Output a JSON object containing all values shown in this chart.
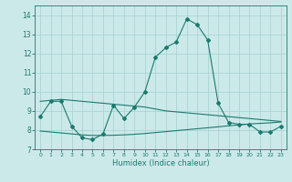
{
  "xlabel": "Humidex (Indice chaleur)",
  "ylabel": "",
  "background_color": "#cce9e9",
  "grid_color": "#aad4d4",
  "line_color": "#1a7a6e",
  "xlim": [
    -0.5,
    23.5
  ],
  "ylim": [
    7,
    14.5
  ],
  "yticks": [
    7,
    8,
    9,
    10,
    11,
    12,
    13,
    14
  ],
  "xtick_labels": [
    "0",
    "1",
    "2",
    "3",
    "4",
    "5",
    "6",
    "7",
    "8",
    "9",
    "10",
    "11",
    "12",
    "13",
    "14",
    "15",
    "16",
    "17",
    "18",
    "19",
    "20",
    "21",
    "22",
    "23"
  ],
  "line1_x": [
    0,
    1,
    2,
    3,
    4,
    5,
    6,
    7,
    8,
    9,
    10,
    11,
    12,
    13,
    14,
    15,
    16,
    17,
    18,
    19,
    20,
    21,
    22,
    23
  ],
  "line1_y": [
    8.7,
    9.5,
    9.5,
    8.2,
    7.6,
    7.5,
    7.8,
    9.3,
    8.6,
    9.2,
    10.0,
    11.8,
    12.3,
    12.6,
    13.8,
    13.5,
    12.7,
    9.4,
    8.4,
    8.3,
    8.3,
    7.9,
    7.9,
    8.2
  ],
  "line2_x": [
    0,
    1,
    2,
    3,
    4,
    5,
    6,
    7,
    8,
    9,
    10,
    11,
    12,
    13,
    14,
    15,
    16,
    17,
    18,
    19,
    20,
    21,
    22,
    23
  ],
  "line2_y": [
    9.5,
    9.55,
    9.6,
    9.55,
    9.5,
    9.45,
    9.4,
    9.35,
    9.3,
    9.25,
    9.2,
    9.1,
    9.0,
    8.95,
    8.9,
    8.85,
    8.8,
    8.75,
    8.7,
    8.65,
    8.6,
    8.55,
    8.5,
    8.45
  ],
  "line3_x": [
    0,
    1,
    2,
    3,
    4,
    5,
    6,
    7,
    8,
    9,
    10,
    11,
    12,
    13,
    14,
    15,
    16,
    17,
    18,
    19,
    20,
    21,
    22,
    23
  ],
  "line3_y": [
    7.95,
    7.9,
    7.85,
    7.8,
    7.75,
    7.72,
    7.72,
    7.73,
    7.75,
    7.78,
    7.82,
    7.87,
    7.92,
    7.97,
    8.02,
    8.07,
    8.12,
    8.17,
    8.22,
    8.27,
    8.32,
    8.35,
    8.38,
    8.42
  ]
}
